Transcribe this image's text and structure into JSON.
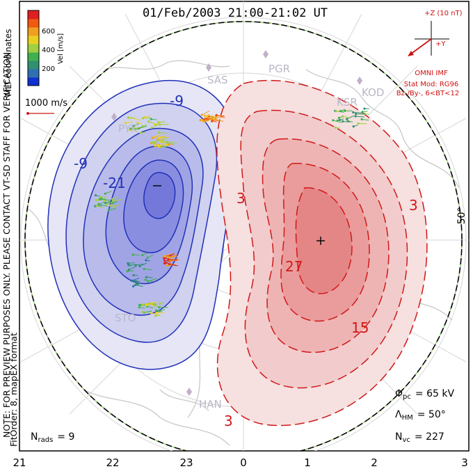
{
  "title": "01/Feb/2003 21:00-21:02 UT",
  "vertical_note": "NOTE: FOR PREVIEW PURPOSES ONLY. PLEASE CONTACT VT-SD STAFF FOR VERIFICATION.",
  "coord_label": "MLT coordinates",
  "fit_order": "FitOrder: 8, mapEX format",
  "colorbar": {
    "label": "Vel [m/s]",
    "ticks": [
      "600",
      "400",
      "200"
    ],
    "colors": [
      "#e02020",
      "#f05a10",
      "#f0a020",
      "#e8d020",
      "#a0d040",
      "#40b050",
      "#309070",
      "#3070b0",
      "#1030d0"
    ]
  },
  "ref_vector": "1000 m/s",
  "imf": {
    "z_label": "+Z (10 nT)",
    "y_label": "+Y",
    "source": "OMNI IMF",
    "stat_mod": "Stat Mod: RG96",
    "condition": "Bz-/By-, 6<BT<12",
    "color": "#d01010"
  },
  "stations": [
    "SAS",
    "PGR",
    "KOD",
    "KSR",
    "STO",
    "PYK",
    "HAN"
  ],
  "latitude_label": "50°",
  "contour_labels": {
    "negative": [
      "-9",
      "-9",
      "-21"
    ],
    "positive": [
      "3",
      "3",
      "27",
      "15",
      "3"
    ]
  },
  "stats": {
    "nrads_label": "N",
    "nrads_sub": "rads",
    "nrads_value": "= 9",
    "phi_label": "Φ",
    "phi_sub": "pc",
    "phi_value": "= 65 kV",
    "lambda_label": "Λ",
    "lambda_sub": "HM",
    "lambda_value": "= 50°",
    "nvc_label": "N",
    "nvc_sub": "vc",
    "nvc_value": "= 227"
  },
  "mlt_ticks": [
    "21",
    "22",
    "23",
    "0",
    "1",
    "2",
    "3"
  ],
  "cell_colors": {
    "negative": "#2838c8",
    "positive": "#d02020"
  }
}
